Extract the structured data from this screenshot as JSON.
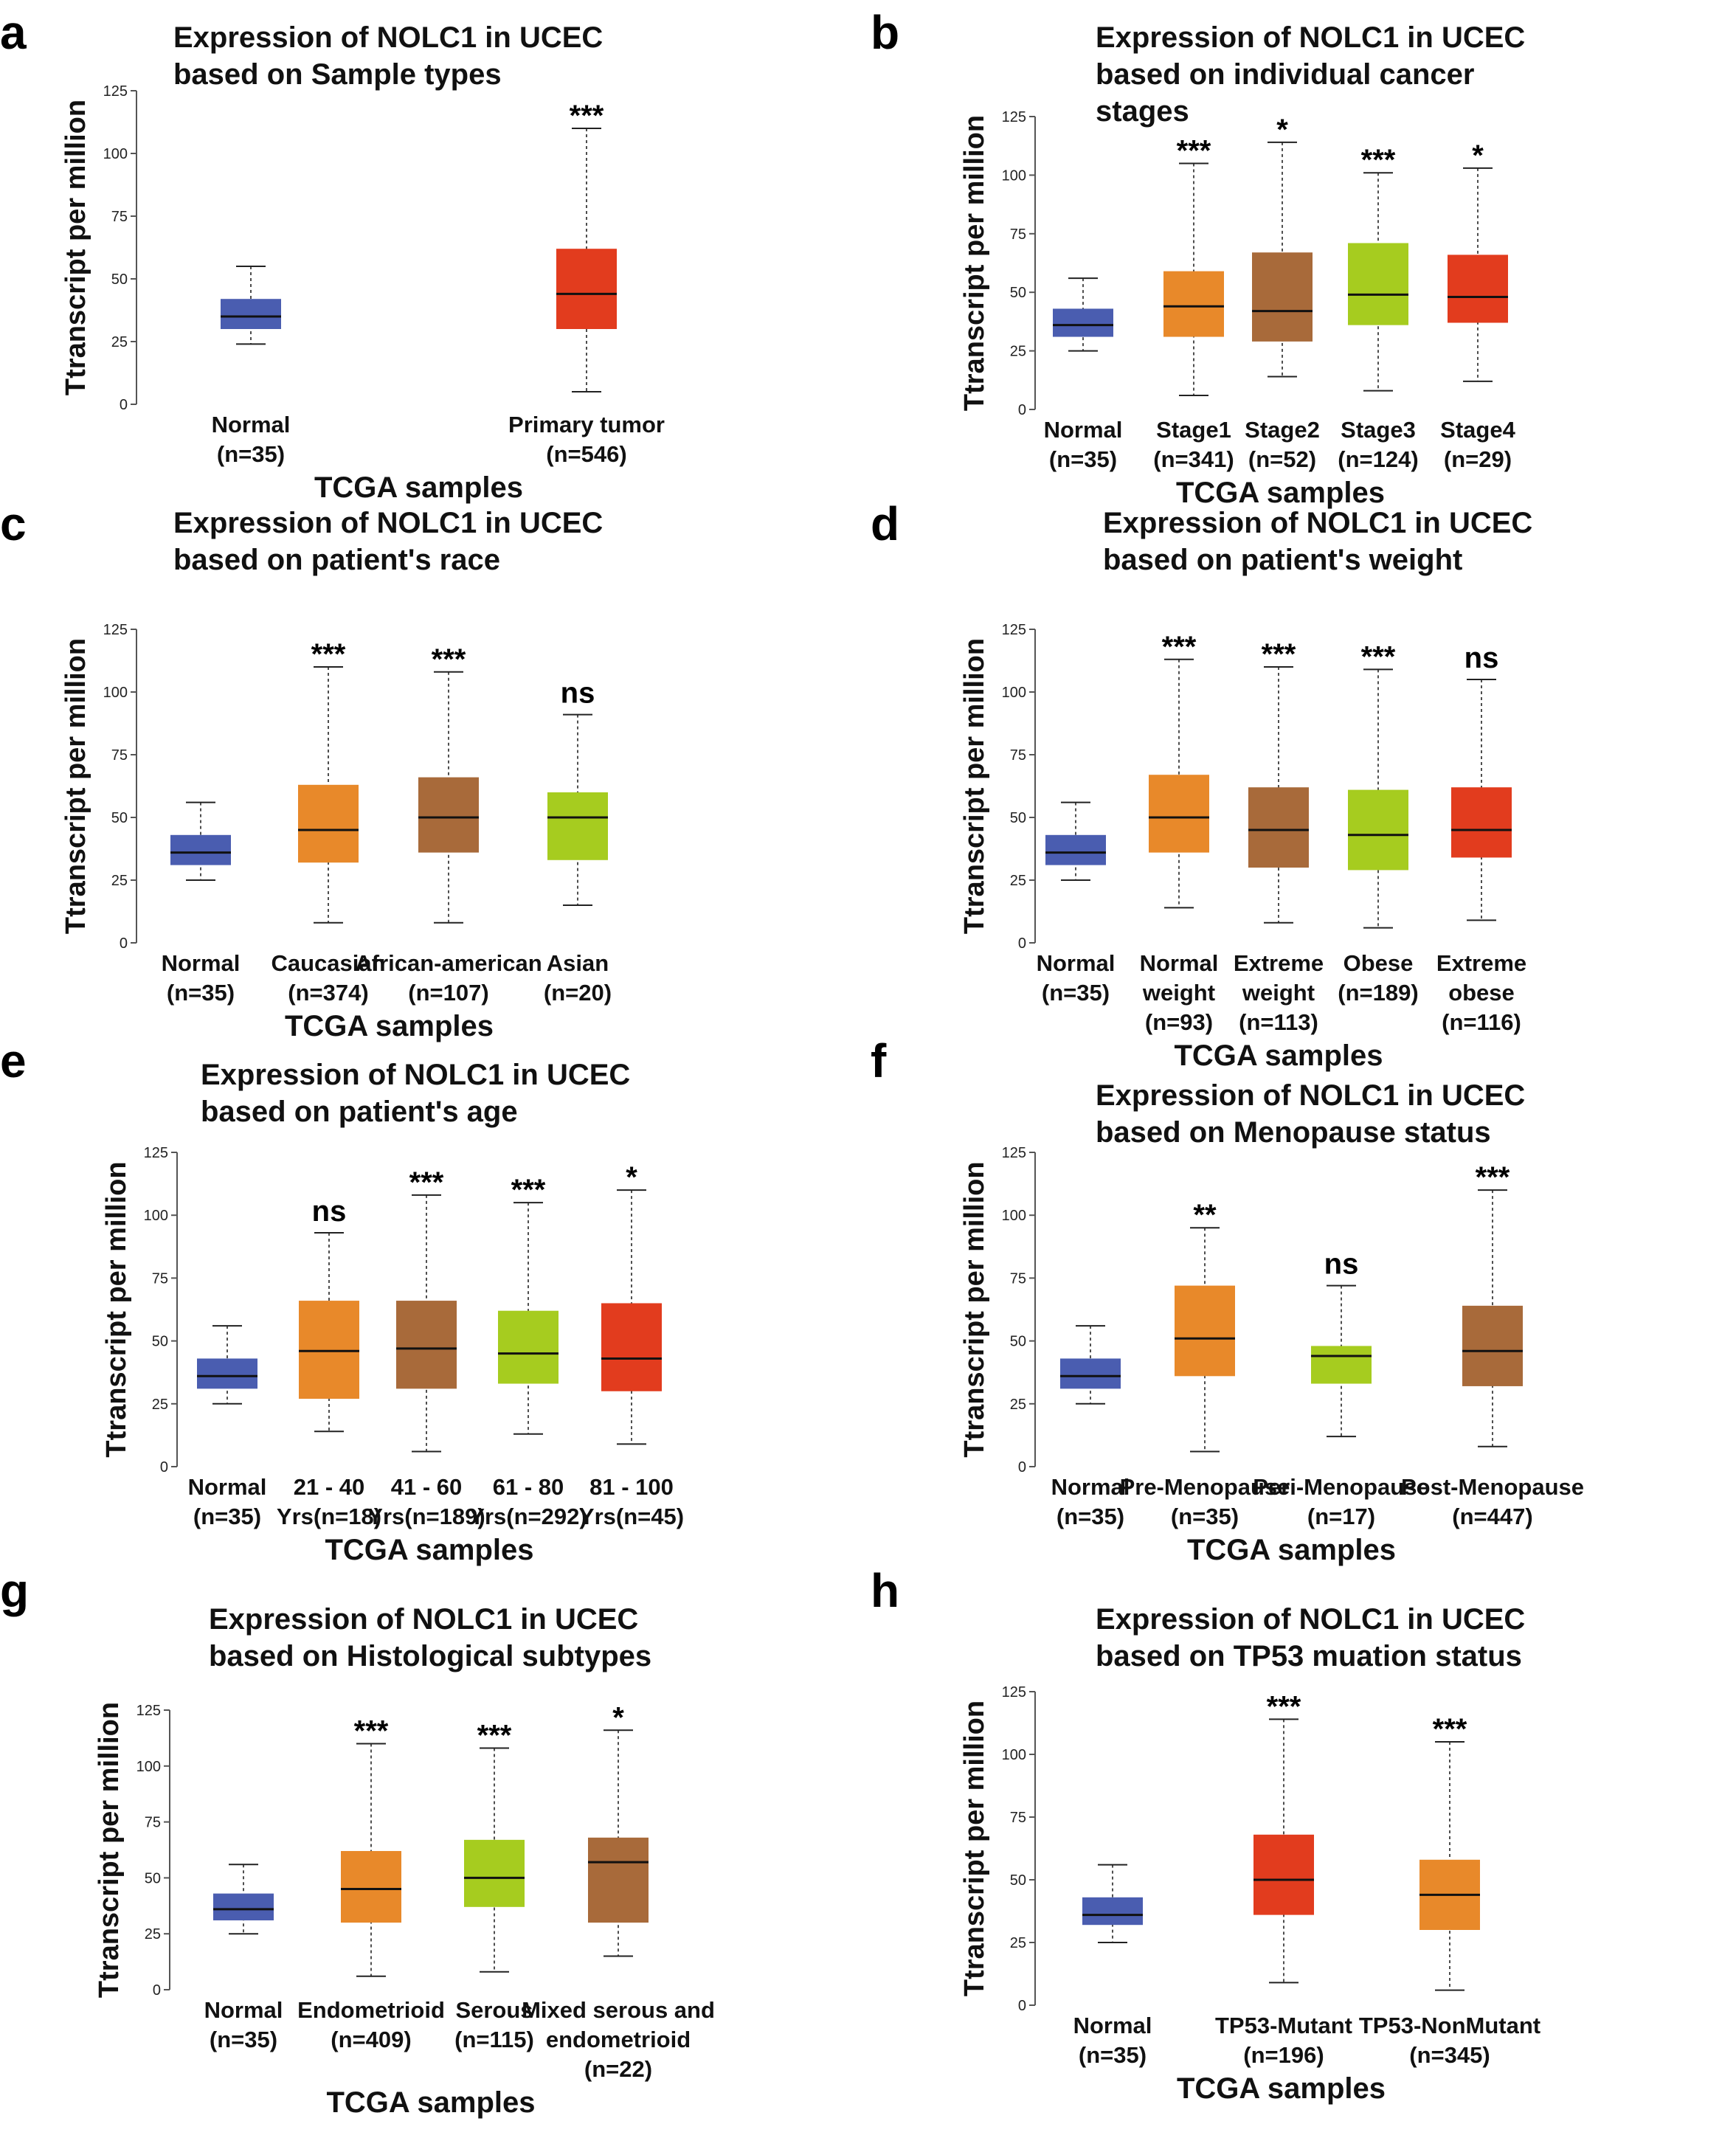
{
  "colors": {
    "blue": "#4a5db0",
    "orange": "#e8892a",
    "brown": "#a86a3a",
    "green": "#a6cc1f",
    "red": "#e23c1e"
  },
  "chart_data": [
    {
      "type": "boxplot",
      "letter": "a",
      "title": [
        "Expression of NOLC1 in UCEC",
        "based on Sample types"
      ],
      "ylabel": "Ttranscript per million",
      "xlabel": "TCGA samples",
      "ylim": [
        0,
        125
      ],
      "yticks": [
        0,
        25,
        50,
        75,
        100,
        125
      ],
      "boxes": [
        {
          "label": [
            "Normal",
            "(n=35)"
          ],
          "min": 24,
          "q1": 30,
          "median": 35,
          "q3": 42,
          "max": 55,
          "color": "blue",
          "sig": ""
        },
        {
          "label": [
            "Primary tumor",
            "(n=546)"
          ],
          "min": 5,
          "q1": 30,
          "median": 44,
          "q3": 62,
          "max": 110,
          "color": "red",
          "sig": "***"
        }
      ]
    },
    {
      "type": "boxplot",
      "letter": "b",
      "title": [
        "Expression of NOLC1 in UCEC",
        "based on individual cancer",
        "stages"
      ],
      "ylabel": "Ttranscript per million",
      "xlabel": "TCGA samples",
      "ylim": [
        0,
        125
      ],
      "yticks": [
        0,
        25,
        50,
        75,
        100,
        125
      ],
      "boxes": [
        {
          "label": [
            "Normal",
            "(n=35)"
          ],
          "min": 25,
          "q1": 31,
          "median": 36,
          "q3": 43,
          "max": 56,
          "color": "blue",
          "sig": ""
        },
        {
          "label": [
            "Stage1",
            "(n=341)"
          ],
          "min": 6,
          "q1": 31,
          "median": 44,
          "q3": 59,
          "max": 105,
          "color": "orange",
          "sig": "***"
        },
        {
          "label": [
            "Stage2",
            "(n=52)"
          ],
          "min": 14,
          "q1": 29,
          "median": 42,
          "q3": 67,
          "max": 114,
          "color": "brown",
          "sig": "*"
        },
        {
          "label": [
            "Stage3",
            "(n=124)"
          ],
          "min": 8,
          "q1": 36,
          "median": 49,
          "q3": 71,
          "max": 101,
          "color": "green",
          "sig": "***"
        },
        {
          "label": [
            "Stage4",
            "(n=29)"
          ],
          "min": 12,
          "q1": 37,
          "median": 48,
          "q3": 66,
          "max": 103,
          "color": "red",
          "sig": "*"
        }
      ]
    },
    {
      "type": "boxplot",
      "letter": "c",
      "title": [
        "Expression of NOLC1 in UCEC",
        "based on patient's race"
      ],
      "ylabel": "Ttranscript per million",
      "xlabel": "TCGA samples",
      "ylim": [
        0,
        125
      ],
      "yticks": [
        0,
        25,
        50,
        75,
        100,
        125
      ],
      "boxes": [
        {
          "label": [
            "Normal",
            "(n=35)"
          ],
          "min": 25,
          "q1": 31,
          "median": 36,
          "q3": 43,
          "max": 56,
          "color": "blue",
          "sig": ""
        },
        {
          "label": [
            "Caucasian",
            "(n=374)"
          ],
          "min": 8,
          "q1": 32,
          "median": 45,
          "q3": 63,
          "max": 110,
          "color": "orange",
          "sig": "***"
        },
        {
          "label": [
            "African-american",
            "(n=107)"
          ],
          "min": 8,
          "q1": 36,
          "median": 50,
          "q3": 66,
          "max": 108,
          "color": "brown",
          "sig": "***"
        },
        {
          "label": [
            "Asian",
            "(n=20)"
          ],
          "min": 15,
          "q1": 33,
          "median": 50,
          "q3": 60,
          "max": 91,
          "color": "green",
          "sig": "ns"
        }
      ]
    },
    {
      "type": "boxplot",
      "letter": "d",
      "title": [
        "Expression of NOLC1 in UCEC",
        "based on patient's weight"
      ],
      "ylabel": "Ttranscript per million",
      "xlabel": "TCGA samples",
      "ylim": [
        0,
        125
      ],
      "yticks": [
        0,
        25,
        50,
        75,
        100,
        125
      ],
      "boxes": [
        {
          "label": [
            "Normal",
            "(n=35)"
          ],
          "min": 25,
          "q1": 31,
          "median": 36,
          "q3": 43,
          "max": 56,
          "color": "blue",
          "sig": ""
        },
        {
          "label": [
            "Normal",
            "weight",
            "(n=93)"
          ],
          "min": 14,
          "q1": 36,
          "median": 50,
          "q3": 67,
          "max": 113,
          "color": "orange",
          "sig": "***"
        },
        {
          "label": [
            "Extreme",
            "weight",
            "(n=113)"
          ],
          "min": 8,
          "q1": 30,
          "median": 45,
          "q3": 62,
          "max": 110,
          "color": "brown",
          "sig": "***"
        },
        {
          "label": [
            "Obese",
            "(n=189)"
          ],
          "min": 6,
          "q1": 29,
          "median": 43,
          "q3": 61,
          "max": 109,
          "color": "green",
          "sig": "***"
        },
        {
          "label": [
            "Extreme",
            "obese",
            "(n=116)"
          ],
          "min": 9,
          "q1": 34,
          "median": 45,
          "q3": 62,
          "max": 105,
          "color": "red",
          "sig": "ns"
        }
      ]
    },
    {
      "type": "boxplot",
      "letter": "e",
      "title": [
        "Expression of NOLC1 in UCEC",
        "based on patient's age"
      ],
      "ylabel": "Ttranscript per million",
      "xlabel": "TCGA samples",
      "ylim": [
        0,
        125
      ],
      "yticks": [
        0,
        25,
        50,
        75,
        100,
        125
      ],
      "boxes": [
        {
          "label": [
            "Normal",
            "(n=35)"
          ],
          "min": 25,
          "q1": 31,
          "median": 36,
          "q3": 43,
          "max": 56,
          "color": "blue",
          "sig": ""
        },
        {
          "label": [
            "21 - 40",
            "Yrs(n=18)"
          ],
          "min": 14,
          "q1": 27,
          "median": 46,
          "q3": 66,
          "max": 93,
          "color": "orange",
          "sig": "ns"
        },
        {
          "label": [
            "41 - 60",
            "Yrs(n=189)"
          ],
          "min": 6,
          "q1": 31,
          "median": 47,
          "q3": 66,
          "max": 108,
          "color": "brown",
          "sig": "***"
        },
        {
          "label": [
            "61 - 80",
            "Yrs(n=292)"
          ],
          "min": 13,
          "q1": 33,
          "median": 45,
          "q3": 62,
          "max": 105,
          "color": "green",
          "sig": "***"
        },
        {
          "label": [
            "81 - 100",
            "Yrs(n=45)"
          ],
          "min": 9,
          "q1": 30,
          "median": 43,
          "q3": 65,
          "max": 110,
          "color": "red",
          "sig": "*"
        }
      ]
    },
    {
      "type": "boxplot",
      "letter": "f",
      "title": [
        "Expression of NOLC1 in UCEC",
        "based on Menopause status"
      ],
      "ylabel": "Ttranscript per million",
      "xlabel": "TCGA samples",
      "ylim": [
        0,
        125
      ],
      "yticks": [
        0,
        25,
        50,
        75,
        100,
        125
      ],
      "boxes": [
        {
          "label": [
            "Normal",
            "(n=35)"
          ],
          "min": 25,
          "q1": 31,
          "median": 36,
          "q3": 43,
          "max": 56,
          "color": "blue",
          "sig": ""
        },
        {
          "label": [
            "Pre-Menopause",
            "(n=35)"
          ],
          "min": 6,
          "q1": 36,
          "median": 51,
          "q3": 72,
          "max": 95,
          "color": "orange",
          "sig": "**"
        },
        {
          "label": [
            "Peri-Menopause",
            "(n=17)"
          ],
          "min": 12,
          "q1": 33,
          "median": 44,
          "q3": 48,
          "max": 72,
          "color": "green",
          "sig": "ns"
        },
        {
          "label": [
            "Post-Menopause",
            "(n=447)"
          ],
          "min": 8,
          "q1": 32,
          "median": 46,
          "q3": 64,
          "max": 110,
          "color": "brown",
          "sig": "***"
        }
      ]
    },
    {
      "type": "boxplot",
      "letter": "g",
      "title": [
        "Expression of NOLC1 in UCEC",
        "based on Histological subtypes"
      ],
      "ylabel": "Ttranscript per million",
      "xlabel": "TCGA samples",
      "ylim": [
        0,
        125
      ],
      "yticks": [
        0,
        25,
        50,
        75,
        100,
        125
      ],
      "boxes": [
        {
          "label": [
            "Normal",
            "(n=35)"
          ],
          "min": 25,
          "q1": 31,
          "median": 36,
          "q3": 43,
          "max": 56,
          "color": "blue",
          "sig": ""
        },
        {
          "label": [
            "Endometrioid",
            "(n=409)"
          ],
          "min": 6,
          "q1": 30,
          "median": 45,
          "q3": 62,
          "max": 110,
          "color": "orange",
          "sig": "***"
        },
        {
          "label": [
            "Serous",
            "(n=115)"
          ],
          "min": 8,
          "q1": 37,
          "median": 50,
          "q3": 67,
          "max": 108,
          "color": "green",
          "sig": "***"
        },
        {
          "label": [
            "Mixed serous and",
            "endometrioid",
            "(n=22)"
          ],
          "min": 15,
          "q1": 30,
          "median": 57,
          "q3": 68,
          "max": 116,
          "color": "brown",
          "sig": "*"
        }
      ]
    },
    {
      "type": "boxplot",
      "letter": "h",
      "title": [
        "Expression of NOLC1 in UCEC",
        "based on TP53 muation status"
      ],
      "ylabel": "Ttranscript per million",
      "xlabel": "TCGA samples",
      "ylim": [
        0,
        125
      ],
      "yticks": [
        0,
        25,
        50,
        75,
        100,
        125
      ],
      "boxes": [
        {
          "label": [
            "Normal",
            "(n=35)"
          ],
          "min": 25,
          "q1": 32,
          "median": 36,
          "q3": 43,
          "max": 56,
          "color": "blue",
          "sig": ""
        },
        {
          "label": [
            "TP53-Mutant",
            "(n=196)"
          ],
          "min": 9,
          "q1": 36,
          "median": 50,
          "q3": 68,
          "max": 114,
          "color": "red",
          "sig": "***"
        },
        {
          "label": [
            "TP53-NonMutant",
            "(n=345)"
          ],
          "min": 6,
          "q1": 30,
          "median": 44,
          "q3": 58,
          "max": 105,
          "color": "orange",
          "sig": "***"
        }
      ]
    }
  ]
}
